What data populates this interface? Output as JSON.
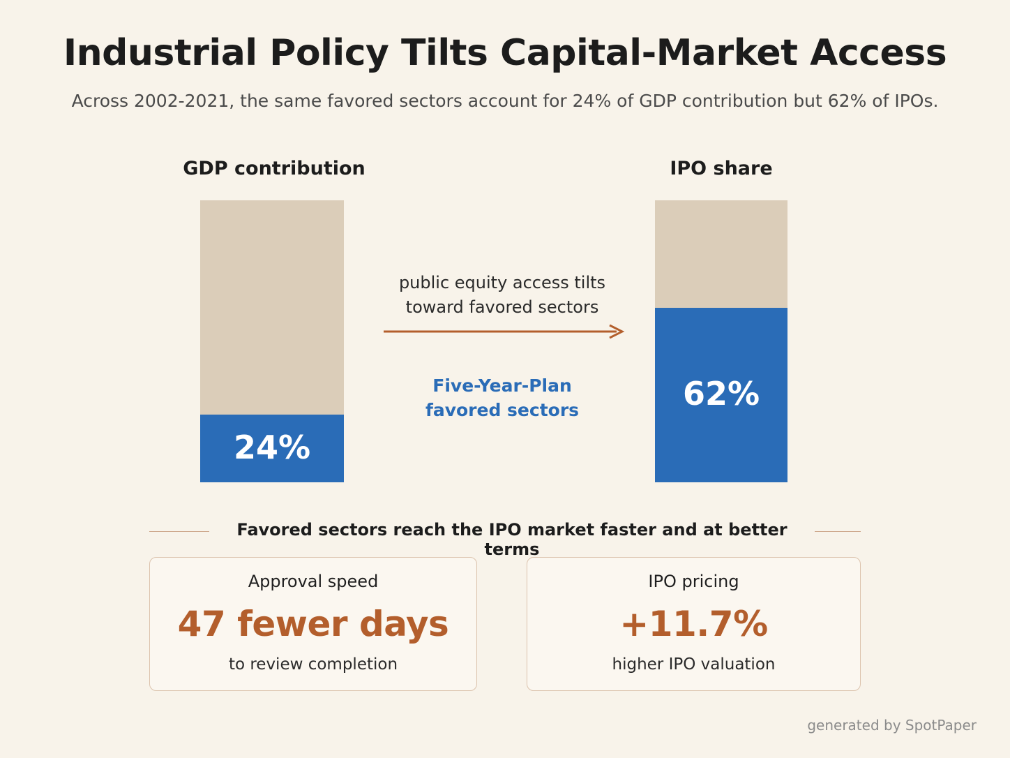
{
  "title": "Industrial Policy Tilts Capital-Market Access",
  "subtitle": "Across 2002-2021, the same favored sectors account for 24% of GDP contribution but 62% of IPOs.",
  "chart_data": {
    "type": "bar",
    "unit": "%",
    "ylim": [
      0,
      100
    ],
    "categories": [
      "GDP contribution",
      "IPO share"
    ],
    "series": [
      {
        "name": "Five-Year-Plan favored sectors",
        "values": [
          24,
          62
        ],
        "value_labels": [
          "24%",
          "62%"
        ],
        "color": "#2a6cb7"
      }
    ],
    "background_color": "#dbcdb9",
    "annotation": {
      "line1": "public equity access tilts",
      "line2": "toward favored sectors",
      "arrow_color": "#b35e2c"
    },
    "series_label": {
      "line1": "Five-Year-Plan",
      "line2": "favored sectors"
    }
  },
  "section": {
    "heading": "Favored sectors reach the IPO market faster and at better terms"
  },
  "cards": [
    {
      "title": "Approval speed",
      "value": "47 fewer days",
      "note": "to review completion"
    },
    {
      "title": "IPO pricing",
      "value": "+11.7%",
      "note": "higher IPO valuation"
    }
  ],
  "colors": {
    "accent_blue": "#2a6cb7",
    "accent_orange": "#b35e2c",
    "bar_background": "#dbcdb9",
    "page_background": "#f8f3ea"
  },
  "footer": "generated by SpotPaper"
}
